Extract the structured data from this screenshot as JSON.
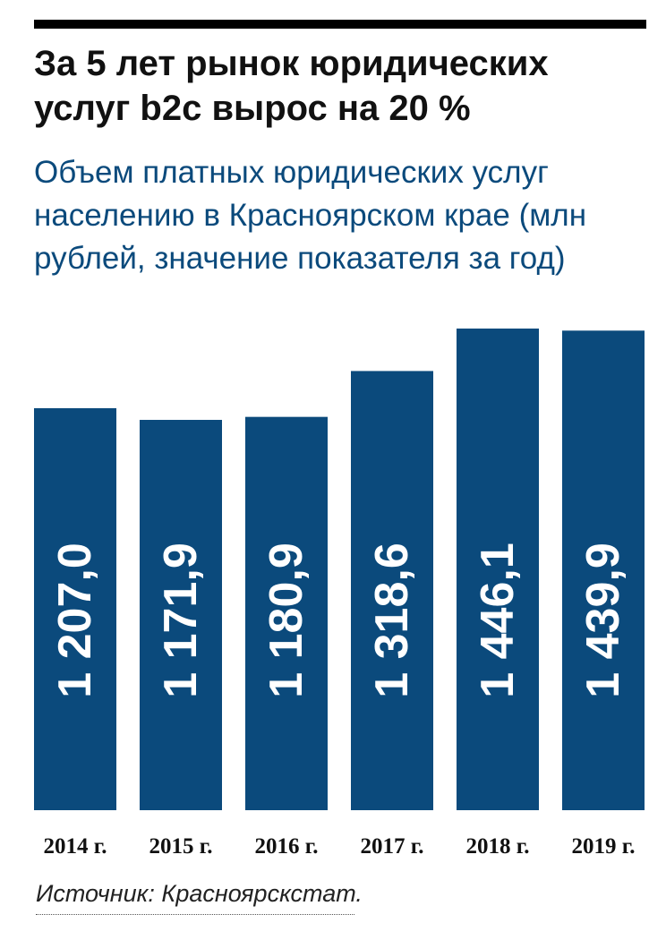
{
  "title": "За 5 лет рынок юридических услуг b2c вырос на 20 %",
  "subtitle": "Объем платных юридических услуг населению в Красноярском крае (млн рублей, значение показателя за год)",
  "source": "Источник: Красноярскстат.",
  "colors": {
    "bar": "#0b4a7c",
    "bar_label": "#ffffff",
    "subtitle": "#0b4a7c"
  },
  "chart_data": {
    "type": "bar",
    "categories": [
      "2014 г.",
      "2015 г.",
      "2016 г.",
      "2017 г.",
      "2018 г.",
      "2019 г."
    ],
    "values": [
      1207.0,
      1171.9,
      1180.9,
      1318.6,
      1446.1,
      1439.9
    ],
    "value_labels": [
      "1 207,0",
      "1 171,9",
      "1 180,9",
      "1 318,6",
      "1 446,1",
      "1 439,9"
    ],
    "title": "За 5 лет рынок юридических услуг b2c вырос на 20 %",
    "xlabel": "",
    "ylabel": "",
    "grid": false,
    "legend": "none"
  }
}
